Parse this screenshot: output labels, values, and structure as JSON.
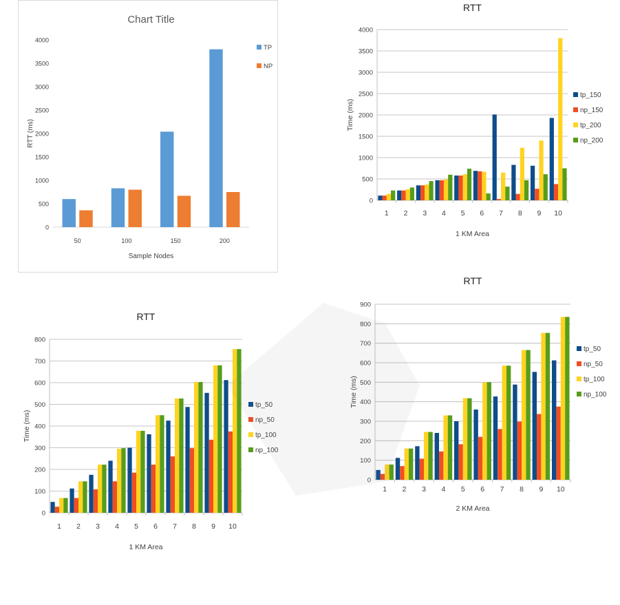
{
  "chart_data": [
    {
      "id": "top-left",
      "type": "bar",
      "title": "Chart Title",
      "xlabel": "Sample Nodes",
      "ylabel": "RTT (ms)",
      "categories": [
        "50",
        "100",
        "150",
        "200"
      ],
      "ylim": [
        0,
        4000
      ],
      "yticks": [
        0,
        500,
        1000,
        1500,
        2000,
        2500,
        3000,
        3500,
        4000
      ],
      "grid": false,
      "legend": "right",
      "series": [
        {
          "name": "TP",
          "color": "#5b9bd5",
          "values": [
            600,
            830,
            2040,
            3800
          ]
        },
        {
          "name": "NP",
          "color": "#ed7d31",
          "values": [
            360,
            800,
            670,
            750
          ]
        }
      ]
    },
    {
      "id": "top-right",
      "type": "bar",
      "title": "RTT",
      "xlabel": "1 KM Area",
      "ylabel": "Time (ms)",
      "categories": [
        "1",
        "2",
        "3",
        "4",
        "5",
        "6",
        "7",
        "8",
        "9",
        "10"
      ],
      "ylim": [
        0,
        4000
      ],
      "yticks": [
        0,
        500,
        1000,
        1500,
        2000,
        2500,
        3000,
        3500,
        4000
      ],
      "grid": true,
      "legend": "right",
      "series": [
        {
          "name": "tp_150",
          "color": "#0f4c8a",
          "values": [
            110,
            230,
            350,
            470,
            580,
            690,
            2010,
            830,
            810,
            1930
          ]
        },
        {
          "name": "np_150",
          "color": "#f04e23",
          "values": [
            110,
            230,
            350,
            470,
            580,
            680,
            30,
            150,
            270,
            380
          ]
        },
        {
          "name": "tp_200",
          "color": "#ffd320",
          "values": [
            150,
            260,
            370,
            490,
            610,
            670,
            650,
            1230,
            1400,
            3800
          ]
        },
        {
          "name": "np_200",
          "color": "#579d1c",
          "values": [
            230,
            300,
            450,
            600,
            740,
            160,
            320,
            470,
            610,
            750
          ]
        }
      ]
    },
    {
      "id": "bottom-left",
      "type": "bar",
      "title": "RTT",
      "xlabel": "1 KM Area",
      "ylabel": "Time (ms)",
      "categories": [
        "1",
        "2",
        "3",
        "4",
        "5",
        "6",
        "7",
        "8",
        "9",
        "10"
      ],
      "ylim": [
        0,
        800
      ],
      "yticks": [
        0,
        100,
        200,
        300,
        400,
        500,
        600,
        700,
        800
      ],
      "grid": true,
      "legend": "right",
      "series": [
        {
          "name": "tp_50",
          "color": "#0f4c8a",
          "values": [
            50,
            112,
            175,
            240,
            300,
            362,
            425,
            488,
            553,
            612
          ]
        },
        {
          "name": "np_50",
          "color": "#f04e23",
          "values": [
            28,
            68,
            108,
            145,
            185,
            222,
            260,
            298,
            337,
            375
          ]
        },
        {
          "name": "tp_100",
          "color": "#ffd320",
          "values": [
            68,
            145,
            222,
            295,
            378,
            450,
            527,
            603,
            680,
            755
          ]
        },
        {
          "name": "np_100",
          "color": "#579d1c",
          "values": [
            68,
            145,
            222,
            298,
            378,
            450,
            527,
            603,
            680,
            755
          ]
        }
      ]
    },
    {
      "id": "bottom-right",
      "type": "bar",
      "title": "RTT",
      "xlabel": "2 KM Area",
      "ylabel": "Time (ms)",
      "categories": [
        "1",
        "2",
        "3",
        "4",
        "5",
        "6",
        "7",
        "8",
        "9",
        "10"
      ],
      "ylim": [
        0,
        900
      ],
      "yticks": [
        0,
        100,
        200,
        300,
        400,
        500,
        600,
        700,
        800,
        900
      ],
      "grid": true,
      "legend": "right",
      "series": [
        {
          "name": "tp_50",
          "color": "#0f4c8a",
          "values": [
            50,
            112,
            172,
            240,
            300,
            360,
            427,
            488,
            553,
            612
          ]
        },
        {
          "name": "np_50",
          "color": "#f04e23",
          "values": [
            30,
            70,
            108,
            145,
            182,
            220,
            260,
            298,
            337,
            375
          ]
        },
        {
          "name": "tp_100",
          "color": "#ffd320",
          "values": [
            78,
            160,
            245,
            330,
            418,
            500,
            585,
            665,
            753,
            835
          ]
        },
        {
          "name": "np_100",
          "color": "#579d1c",
          "values": [
            78,
            160,
            245,
            330,
            418,
            500,
            585,
            665,
            753,
            835
          ]
        }
      ]
    }
  ]
}
